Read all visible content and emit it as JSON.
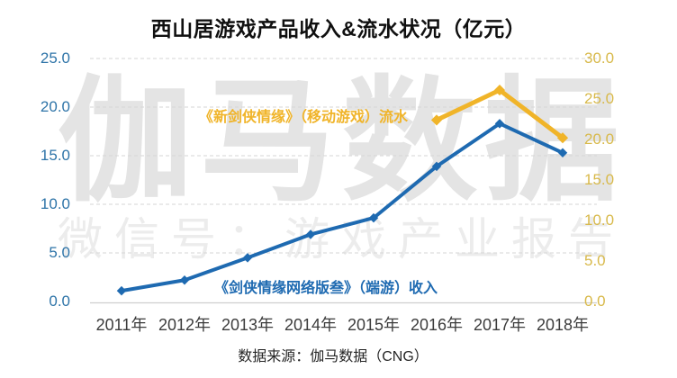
{
  "title": {
    "text": "西山居游戏产品收入&流水状况（亿元）",
    "color": "#101010"
  },
  "watermark": {
    "line1": "伽马数据",
    "line2": "微信号：游戏产业报告"
  },
  "source_note": "数据来源：伽马数据（CNG）",
  "chart_data": {
    "type": "line",
    "title": "西山居游戏产品收入&流水状况（亿元）",
    "categories": [
      "2011年",
      "2012年",
      "2013年",
      "2014年",
      "2015年",
      "2016年",
      "2017年",
      "2018年"
    ],
    "series": [
      {
        "name": "《剑侠情缘网络版叁》（端游）收入",
        "axis": "left",
        "color": "#1e6ab1",
        "marker": "diamond",
        "values": [
          1.1,
          2.2,
          4.5,
          6.9,
          8.6,
          13.9,
          18.3,
          15.3
        ]
      },
      {
        "name": "《新剑侠情缘》（移动游戏）流水",
        "axis": "right",
        "color": "#f0b429",
        "marker": "diamond",
        "values": [
          null,
          null,
          null,
          null,
          null,
          22.4,
          26.1,
          20.2
        ]
      }
    ],
    "left_axis": {
      "min": 0,
      "max": 25,
      "step": 5,
      "tick_labels": [
        "25.0",
        "20.0",
        "15.0",
        "10.0",
        "5.0",
        "0.0"
      ],
      "label_color": "#2e74a8"
    },
    "right_axis": {
      "min": 0,
      "max": 30,
      "step": 5,
      "tick_labels": [
        "30.0",
        "25.0",
        "20.0",
        "15.0",
        "10.0",
        "5.0",
        "0.0"
      ],
      "label_color": "#d8b94a"
    },
    "grid": {
      "horizontal": true,
      "style": "dashed",
      "color": "#d6d6d6",
      "axis_line_color": "#cfcfcf"
    },
    "legend_position": "inline-annotations"
  }
}
